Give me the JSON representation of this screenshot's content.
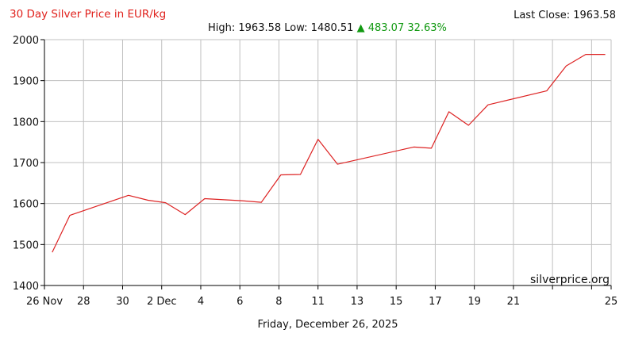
{
  "header": {
    "title": "30 Day Silver Price in EUR/kg",
    "last_close": "Last Close: 1963.58",
    "stats_text": "High: 1963.58 Low: 1480.51",
    "change": "▲ 483.07 32.63%"
  },
  "footer": {
    "date": "Friday, December 26, 2025"
  },
  "watermark": "silverprice.org",
  "colors": {
    "line": "#dd2222",
    "grid": "#c0c0c0",
    "axis": "#000000",
    "title": "#e0201b",
    "up": "#119911"
  },
  "chart_data": {
    "type": "line",
    "title": "30 Day Silver Price in EUR/kg",
    "xlabel": "",
    "ylabel": "",
    "xlim": [
      0,
      29
    ],
    "ylim": [
      1400,
      2000
    ],
    "grid": true,
    "x_ticks": [
      {
        "x": 0,
        "label": "26 Nov"
      },
      {
        "x": 2,
        "label": "28"
      },
      {
        "x": 4,
        "label": "30"
      },
      {
        "x": 6,
        "label": "2 Dec"
      },
      {
        "x": 8,
        "label": "4"
      },
      {
        "x": 10,
        "label": "6"
      },
      {
        "x": 12,
        "label": "8"
      },
      {
        "x": 14,
        "label": "11"
      },
      {
        "x": 16,
        "label": "13"
      },
      {
        "x": 18,
        "label": "15"
      },
      {
        "x": 20,
        "label": "17"
      },
      {
        "x": 22,
        "label": "19"
      },
      {
        "x": 24,
        "label": "21"
      },
      {
        "x": 26,
        "label": ""
      },
      {
        "x": 28,
        "label": ""
      },
      {
        "x": 29,
        "label": "25"
      }
    ],
    "y_ticks": [
      1400,
      1500,
      1600,
      1700,
      1800,
      1900,
      2000
    ],
    "series": [
      {
        "points": [
          [
            0.4,
            1481
          ],
          [
            1.3,
            1571
          ],
          [
            4.3,
            1620
          ],
          [
            5.3,
            1608
          ],
          [
            6.2,
            1602
          ],
          [
            7.2,
            1573
          ],
          [
            8.2,
            1612
          ],
          [
            10.1,
            1607
          ],
          [
            11.1,
            1603
          ],
          [
            12.1,
            1670
          ],
          [
            13.1,
            1671
          ],
          [
            14.0,
            1757
          ],
          [
            15.0,
            1696
          ],
          [
            18.9,
            1738
          ],
          [
            19.8,
            1735
          ],
          [
            20.7,
            1824
          ],
          [
            21.7,
            1791
          ],
          [
            22.7,
            1841
          ],
          [
            25.7,
            1875
          ],
          [
            26.7,
            1936
          ],
          [
            27.7,
            1964
          ],
          [
            28.7,
            1964
          ]
        ]
      }
    ]
  }
}
